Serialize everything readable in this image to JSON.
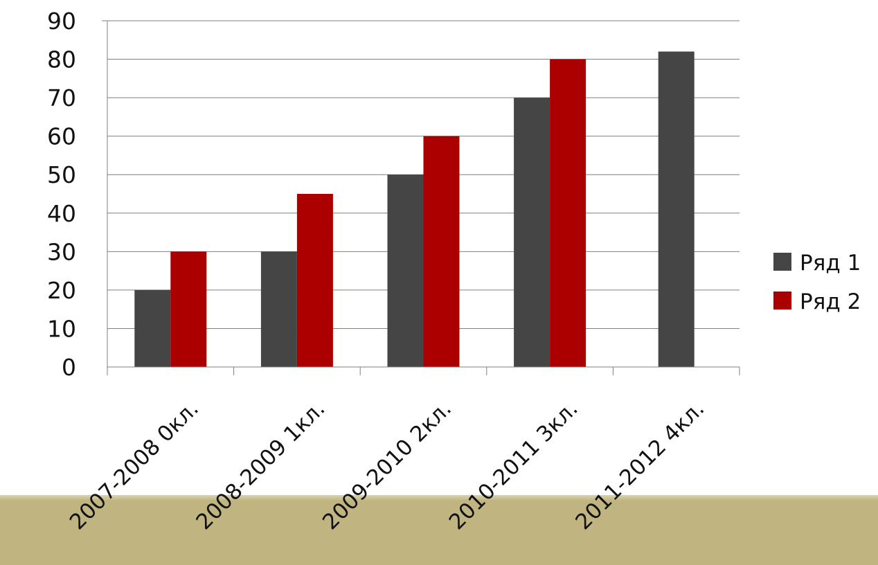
{
  "colors": {
    "background": "#ffffff",
    "band": "#c0b580",
    "series1": "#454545",
    "series2": "#aa0000",
    "grid": "#7f7f7f",
    "text": "#111111"
  },
  "chart_data": {
    "type": "bar",
    "title": "",
    "xlabel": "",
    "ylabel": "",
    "ylim": [
      0,
      90
    ],
    "yticks": [
      0,
      10,
      20,
      30,
      40,
      50,
      60,
      70,
      80,
      90
    ],
    "grid": true,
    "legend_position": "right",
    "categories": [
      "2007-2008  0кл.",
      "2008-2009  1кл.",
      "2009-2010  2кл.",
      "2010-2011  3кл.",
      "2011-2012  4кл."
    ],
    "series": [
      {
        "name": "Ряд 1",
        "values": [
          20,
          30,
          50,
          70,
          82
        ],
        "color": "#454545"
      },
      {
        "name": "Ряд 2",
        "values": [
          30,
          45,
          60,
          80,
          null
        ],
        "color": "#aa0000"
      }
    ]
  }
}
